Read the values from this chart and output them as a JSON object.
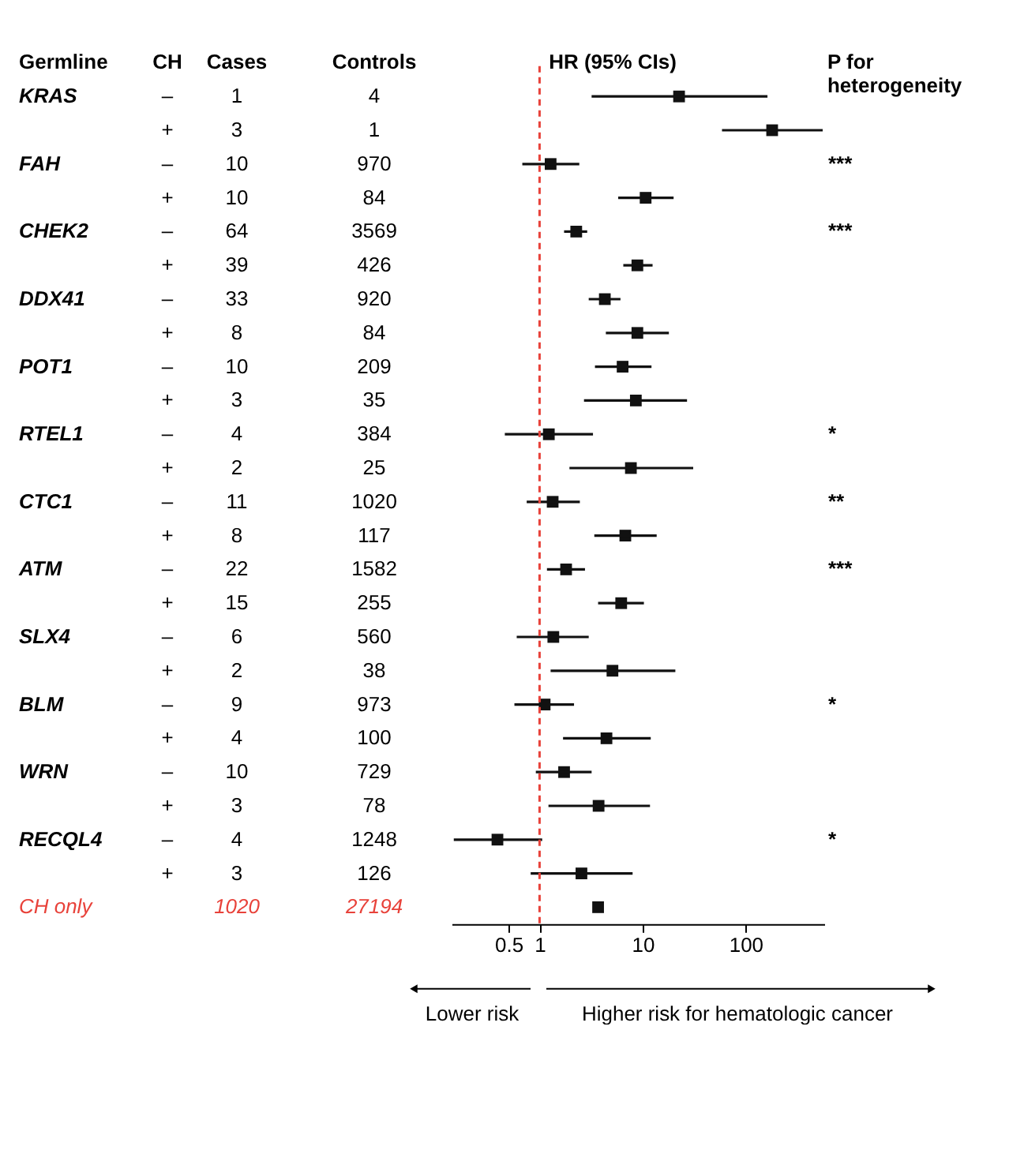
{
  "chart_data": [
    {
      "type": "other",
      "categories": [
        "Germline",
        "CH",
        "Cases",
        "Controls"
      ],
      "cell_labels": [
        [
          "KRAS",
          "–",
          "1",
          "4"
        ],
        [
          null,
          "+",
          "3",
          "1"
        ],
        [
          "FAH",
          "–",
          "10",
          "970"
        ],
        [
          null,
          "+",
          "10",
          "84"
        ],
        [
          "CHEK2",
          "–",
          "64",
          "3569"
        ],
        [
          null,
          "+",
          "39",
          "426"
        ],
        [
          "DDX41",
          "–",
          "33",
          "920"
        ],
        [
          null,
          "+",
          "8",
          "84"
        ],
        [
          "POT1",
          "–",
          "10",
          "209"
        ],
        [
          null,
          "+",
          "3",
          "35"
        ],
        [
          "RTEL1",
          "–",
          "4",
          "384"
        ],
        [
          null,
          "+",
          "2",
          "25"
        ],
        [
          "CTC1",
          "–",
          "11",
          "1020"
        ],
        [
          null,
          "+",
          "8",
          "117"
        ],
        [
          "ATM",
          "–",
          "22",
          "1582"
        ],
        [
          null,
          "+",
          "15",
          "255"
        ],
        [
          "SLX4",
          "–",
          "6",
          "560"
        ],
        [
          null,
          "+",
          "2",
          "38"
        ],
        [
          "BLM",
          "–",
          "9",
          "973"
        ],
        [
          null,
          "+",
          "4",
          "100"
        ],
        [
          "WRN",
          "–",
          "10",
          "729"
        ],
        [
          null,
          "+",
          "3",
          "78"
        ],
        [
          "RECQL4",
          "–",
          "4",
          "1248"
        ],
        [
          null,
          "+",
          "3",
          "126"
        ],
        [
          "CH only",
          null,
          "1020",
          "27194"
        ]
      ],
      "colors": [
        "#000000",
        "#000000",
        "#000000",
        "#000000",
        "#000000",
        "#000000",
        "#000000",
        "#000000",
        "#000000",
        "#000000",
        "#000000",
        "#000000",
        "#000000",
        "#000000",
        "#000000",
        "#000000",
        "#000000",
        "#000000",
        "#000000",
        "#000000",
        "#000000",
        "#000000",
        "#000000",
        "#000000",
        "#e8423a"
      ]
    },
    {
      "type": "scatter",
      "title": "HR (95% CIs)",
      "orientation": "horizontal",
      "log": "x",
      "marker": "square",
      "categories": [
        null,
        null,
        null,
        null,
        null,
        null,
        null,
        null,
        null,
        null,
        null,
        null,
        null,
        null,
        null,
        null,
        null,
        null,
        null,
        null,
        null,
        null,
        null,
        null,
        null
      ],
      "series": [
        {
          "color": "#111111",
          "values": [
            22.6,
            181,
            1.28,
            10.7,
            2.27,
            8.9,
            4.3,
            8.9,
            6.4,
            8.6,
            1.23,
            7.7,
            1.34,
            6.8,
            1.81,
            6.2,
            1.36,
            5.1,
            1.12,
            4.46,
            1.73,
            3.74,
            0.39,
            2.55,
            3.7
          ],
          "errors": [
            [
              3.2,
              163
            ],
            [
              59,
              560
            ],
            [
              0.68,
              2.43
            ],
            [
              5.8,
              20
            ],
            [
              1.73,
              2.9
            ],
            [
              6.5,
              12.5
            ],
            [
              3.0,
              6.1
            ],
            [
              4.4,
              18
            ],
            [
              3.45,
              12.2
            ],
            [
              2.7,
              27
            ],
            [
              0.46,
              3.3
            ],
            [
              1.95,
              31
            ],
            [
              0.75,
              2.46
            ],
            [
              3.4,
              13.7
            ],
            [
              1.18,
              2.76
            ],
            [
              3.7,
              10.3
            ],
            [
              0.6,
              3.0
            ],
            [
              1.28,
              20.8
            ],
            [
              0.57,
              2.16
            ],
            [
              1.69,
              12
            ],
            [
              0.92,
              3.2
            ],
            [
              1.22,
              11.8
            ],
            [
              0.147,
              1.06
            ],
            [
              0.82,
              8.0
            ],
            null
          ]
        }
      ],
      "xlim": [
        0.14,
        580
      ],
      "xticks": [
        0.5,
        1,
        10,
        100
      ],
      "ref_lines": [
        {
          "axis": "x",
          "value": 1,
          "color": "#e8423a",
          "line_style": "dashed"
        }
      ],
      "annotations": [
        "Lower risk",
        "Higher risk for hematologic cancer"
      ]
    },
    {
      "type": "other",
      "categories": [
        "P for heterogeneity"
      ],
      "cell_labels": [
        [
          null
        ],
        [
          null
        ],
        [
          "***"
        ],
        [
          null
        ],
        [
          "***"
        ],
        [
          null
        ],
        [
          null
        ],
        [
          null
        ],
        [
          null
        ],
        [
          null
        ],
        [
          "*"
        ],
        [
          null
        ],
        [
          "**"
        ],
        [
          null
        ],
        [
          "***"
        ],
        [
          null
        ],
        [
          null
        ],
        [
          null
        ],
        [
          "*"
        ],
        [
          null
        ],
        [
          null
        ],
        [
          null
        ],
        [
          "*"
        ],
        [
          null
        ],
        [
          null
        ]
      ]
    }
  ]
}
